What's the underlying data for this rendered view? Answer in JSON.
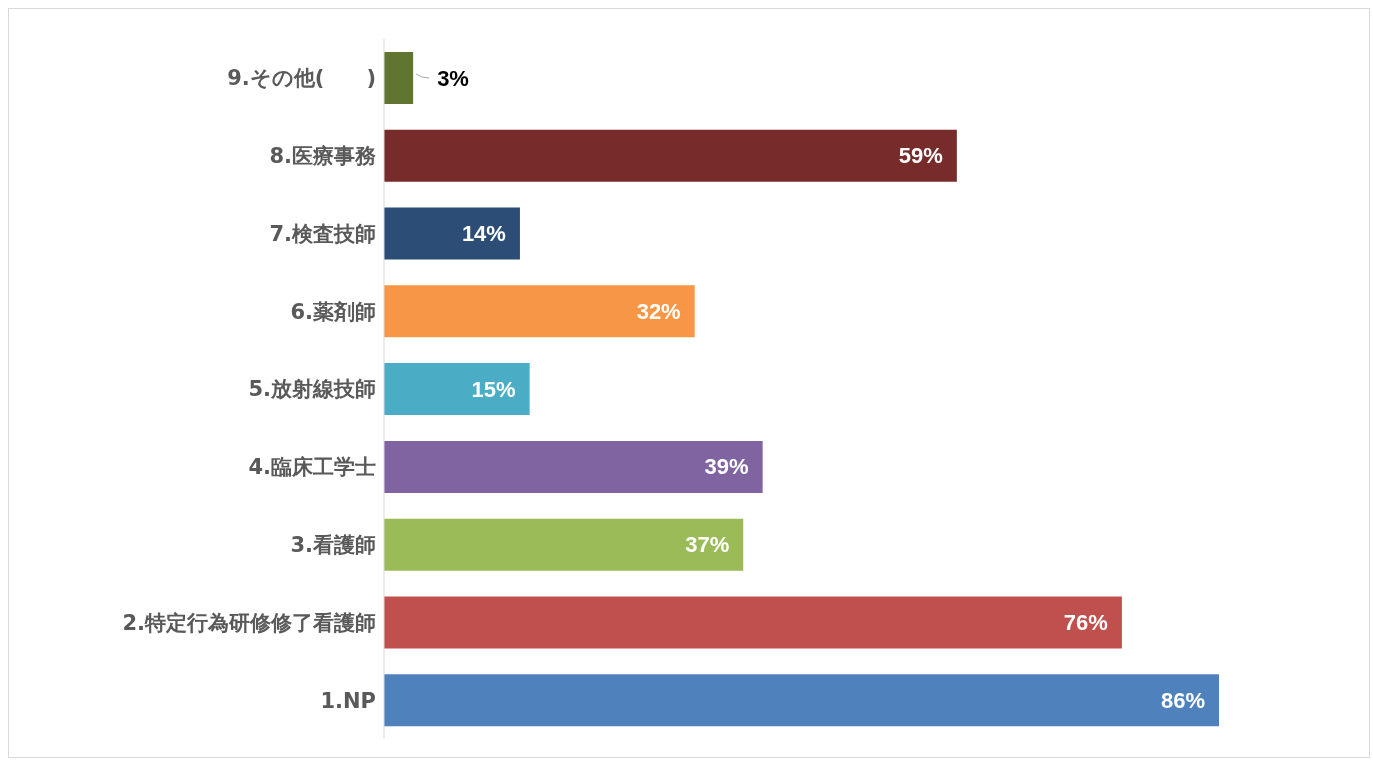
{
  "chart_data": {
    "type": "bar",
    "orientation": "horizontal",
    "categories": [
      "9.その他(　　)",
      "8.医療事務",
      "7.検査技師",
      "6.薬剤師",
      "5.放射線技師",
      "4.臨床工学士",
      "3.看護師",
      "2.特定行為研修修了看護師",
      "1.NP"
    ],
    "values": [
      3,
      59,
      14,
      32,
      15,
      39,
      37,
      76,
      86
    ],
    "value_labels": [
      "3%",
      "59%",
      "14%",
      "32%",
      "15%",
      "39%",
      "37%",
      "76%",
      "86%"
    ],
    "colors": [
      "#607630",
      "#772b2b",
      "#2c4d75",
      "#f79646",
      "#4bacc6",
      "#8064a2",
      "#9bbb59",
      "#c0504d",
      "#4f81bd"
    ],
    "data_labels": false
  }
}
